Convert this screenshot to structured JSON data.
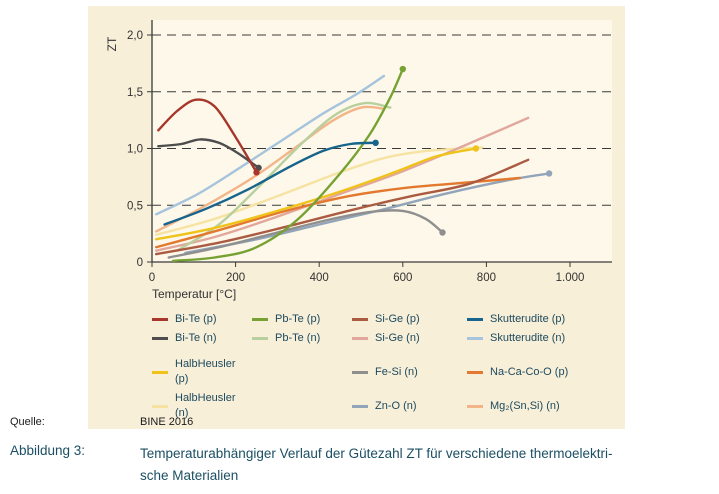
{
  "colors": {
    "figure_bg": "#f8efd9",
    "plot_bg": "#fdf8e9",
    "axis": "#3a3a3a",
    "tick_text": "#333333",
    "legend_text": "#1d4a5e",
    "caption_text": "#1b4f63"
  },
  "caption": {
    "source_label": "Quelle:",
    "source_value": "BINE 2016",
    "figure_label": "Abbildung 3:",
    "lines": [
      "Temperaturabhängiger Verlauf der Gütezahl ZT für verschiedene thermoelektri-",
      "sche Materialien"
    ]
  },
  "chart_data": {
    "type": "line",
    "title": "",
    "xlabel": "Temperatur [°C]",
    "ylabel": "ZT",
    "xlim": [
      0,
      1000
    ],
    "ylim": [
      0,
      2.0
    ],
    "grid": "dashed horizontal lines at 0.5, 1.0, 1.5, 2.0",
    "legend_position": "bottom",
    "x_ticks": [
      {
        "v": 0,
        "label": "0"
      },
      {
        "v": 200,
        "label": "200"
      },
      {
        "v": 400,
        "label": "400"
      },
      {
        "v": 600,
        "label": "600"
      },
      {
        "v": 800,
        "label": "800"
      },
      {
        "v": 1000,
        "label": "1.000"
      }
    ],
    "y_ticks": [
      {
        "v": 0,
        "label": "0"
      },
      {
        "v": 0.5,
        "label": "0,5"
      },
      {
        "v": 1.0,
        "label": "1,0"
      },
      {
        "v": 1.5,
        "label": "1,5"
      },
      {
        "v": 2.0,
        "label": "2,0"
      }
    ],
    "series": [
      {
        "name": "HalbHeusler (n)",
        "color": "#f6e3a1",
        "end_dot": false,
        "points": [
          [
            10,
            0.24
          ],
          [
            150,
            0.38
          ],
          [
            300,
            0.58
          ],
          [
            450,
            0.79
          ],
          [
            560,
            0.92
          ],
          [
            660,
            0.98
          ],
          [
            790,
            1.01
          ]
        ]
      },
      {
        "name": "Si-Ge (n)",
        "color": "#e2a79c",
        "end_dot": false,
        "points": [
          [
            10,
            0.1
          ],
          [
            150,
            0.22
          ],
          [
            300,
            0.4
          ],
          [
            450,
            0.6
          ],
          [
            600,
            0.8
          ],
          [
            750,
            1.03
          ],
          [
            900,
            1.27
          ]
        ]
      },
      {
        "name": "Mg₂(Sn,Si) (n)",
        "color": "#f3b488",
        "end_dot": false,
        "points": [
          [
            10,
            0.27
          ],
          [
            120,
            0.48
          ],
          [
            240,
            0.74
          ],
          [
            340,
            1.0
          ],
          [
            430,
            1.24
          ],
          [
            500,
            1.36
          ],
          [
            555,
            1.35
          ]
        ]
      },
      {
        "name": "Pb-Te (n)",
        "color": "#b8cf9e",
        "end_dot": false,
        "points": [
          [
            60,
            0.1
          ],
          [
            160,
            0.33
          ],
          [
            260,
            0.68
          ],
          [
            360,
            1.05
          ],
          [
            440,
            1.3
          ],
          [
            510,
            1.4
          ],
          [
            570,
            1.36
          ]
        ]
      },
      {
        "name": "Skutterudite (n)",
        "color": "#a6c4dd",
        "end_dot": false,
        "points": [
          [
            10,
            0.42
          ],
          [
            110,
            0.6
          ],
          [
            210,
            0.83
          ],
          [
            310,
            1.07
          ],
          [
            410,
            1.31
          ],
          [
            490,
            1.48
          ],
          [
            555,
            1.64
          ]
        ]
      },
      {
        "name": "Zn-O (n)",
        "color": "#91a4ba",
        "end_dot": true,
        "points": [
          [
            80,
            0.08
          ],
          [
            250,
            0.2
          ],
          [
            400,
            0.33
          ],
          [
            550,
            0.46
          ],
          [
            700,
            0.6
          ],
          [
            850,
            0.72
          ],
          [
            950,
            0.78
          ]
        ]
      },
      {
        "name": "Fe-Si (n)",
        "color": "#8f8f8f",
        "end_dot": true,
        "points": [
          [
            40,
            0.04
          ],
          [
            160,
            0.13
          ],
          [
            300,
            0.26
          ],
          [
            420,
            0.37
          ],
          [
            520,
            0.44
          ],
          [
            600,
            0.45
          ],
          [
            655,
            0.38
          ],
          [
            695,
            0.26
          ]
        ]
      },
      {
        "name": "Na-Ca-Co-O (p)",
        "color": "#e2792f",
        "end_dot": false,
        "points": [
          [
            10,
            0.13
          ],
          [
            160,
            0.28
          ],
          [
            320,
            0.45
          ],
          [
            470,
            0.58
          ],
          [
            600,
            0.65
          ],
          [
            720,
            0.69
          ],
          [
            880,
            0.74
          ]
        ]
      },
      {
        "name": "HalbHeusler (p)",
        "color": "#efc319",
        "end_dot": true,
        "points": [
          [
            10,
            0.2
          ],
          [
            150,
            0.3
          ],
          [
            300,
            0.45
          ],
          [
            450,
            0.62
          ],
          [
            580,
            0.79
          ],
          [
            680,
            0.93
          ],
          [
            775,
            1.0
          ]
        ]
      },
      {
        "name": "Si-Ge (p)",
        "color": "#ab5b41",
        "end_dot": false,
        "points": [
          [
            10,
            0.07
          ],
          [
            160,
            0.17
          ],
          [
            320,
            0.31
          ],
          [
            480,
            0.46
          ],
          [
            620,
            0.58
          ],
          [
            760,
            0.69
          ],
          [
            900,
            0.9
          ]
        ]
      },
      {
        "name": "Pb-Te (p)",
        "color": "#76a233",
        "end_dot": true,
        "points": [
          [
            50,
            0.01
          ],
          [
            150,
            0.04
          ],
          [
            250,
            0.13
          ],
          [
            350,
            0.38
          ],
          [
            450,
            0.78
          ],
          [
            520,
            1.12
          ],
          [
            570,
            1.45
          ],
          [
            600,
            1.7
          ]
        ]
      },
      {
        "name": "Skutterudite (p)",
        "color": "#17648d",
        "end_dot": true,
        "points": [
          [
            30,
            0.33
          ],
          [
            130,
            0.47
          ],
          [
            230,
            0.64
          ],
          [
            330,
            0.84
          ],
          [
            410,
            0.98
          ],
          [
            475,
            1.04
          ],
          [
            535,
            1.05
          ]
        ]
      },
      {
        "name": "Bi-Te (n)",
        "color": "#4d4d4d",
        "end_dot": true,
        "points": [
          [
            15,
            1.02
          ],
          [
            70,
            1.04
          ],
          [
            115,
            1.08
          ],
          [
            160,
            1.05
          ],
          [
            205,
            0.96
          ],
          [
            255,
            0.83
          ]
        ]
      },
      {
        "name": "Bi-Te (p)",
        "color": "#a8372b",
        "end_dot": true,
        "points": [
          [
            15,
            1.16
          ],
          [
            60,
            1.33
          ],
          [
            105,
            1.43
          ],
          [
            150,
            1.37
          ],
          [
            200,
            1.1
          ],
          [
            250,
            0.79
          ]
        ]
      }
    ],
    "legend": {
      "groups": [
        {
          "items": [
            {
              "label": "Bi-Te (p)",
              "color": "#a8372b",
              "row": 0,
              "col": 0
            },
            {
              "label": "Bi-Te (n)",
              "color": "#4d4d4d",
              "row": 1,
              "col": 0
            },
            {
              "label": "Pb-Te (p)",
              "color": "#76a233",
              "row": 0,
              "col": 1
            },
            {
              "label": "Pb-Te (n)",
              "color": "#b8cf9e",
              "row": 1,
              "col": 1
            },
            {
              "label": "Si-Ge (p)",
              "color": "#ab5b41",
              "row": 0,
              "col": 2
            },
            {
              "label": "Si-Ge (n)",
              "color": "#e2a79c",
              "row": 1,
              "col": 2
            },
            {
              "label": "Skutterudite (p)",
              "color": "#17648d",
              "row": 0,
              "col": 3
            },
            {
              "label": "Skutterudite (n)",
              "color": "#a6c4dd",
              "row": 1,
              "col": 3
            }
          ]
        },
        {
          "items": [
            {
              "label": "HalbHeusler (p)",
              "color": "#efc319",
              "row": 0,
              "col": 0
            },
            {
              "label": "HalbHeusler (n)",
              "color": "#f6e3a1",
              "row": 1,
              "col": 0
            },
            {
              "label": "Fe-Si (n)",
              "color": "#8f8f8f",
              "row": 0,
              "col": 2
            },
            {
              "label": "Zn-O (n)",
              "color": "#91a4ba",
              "row": 1,
              "col": 2
            },
            {
              "label": "Na-Ca-Co-O (p)",
              "color": "#e2792f",
              "row": 0,
              "col": 3
            },
            {
              "label": "Mg₂(Sn,Si) (n)",
              "color": "#f3b488",
              "row": 1,
              "col": 3
            }
          ]
        }
      ]
    }
  }
}
